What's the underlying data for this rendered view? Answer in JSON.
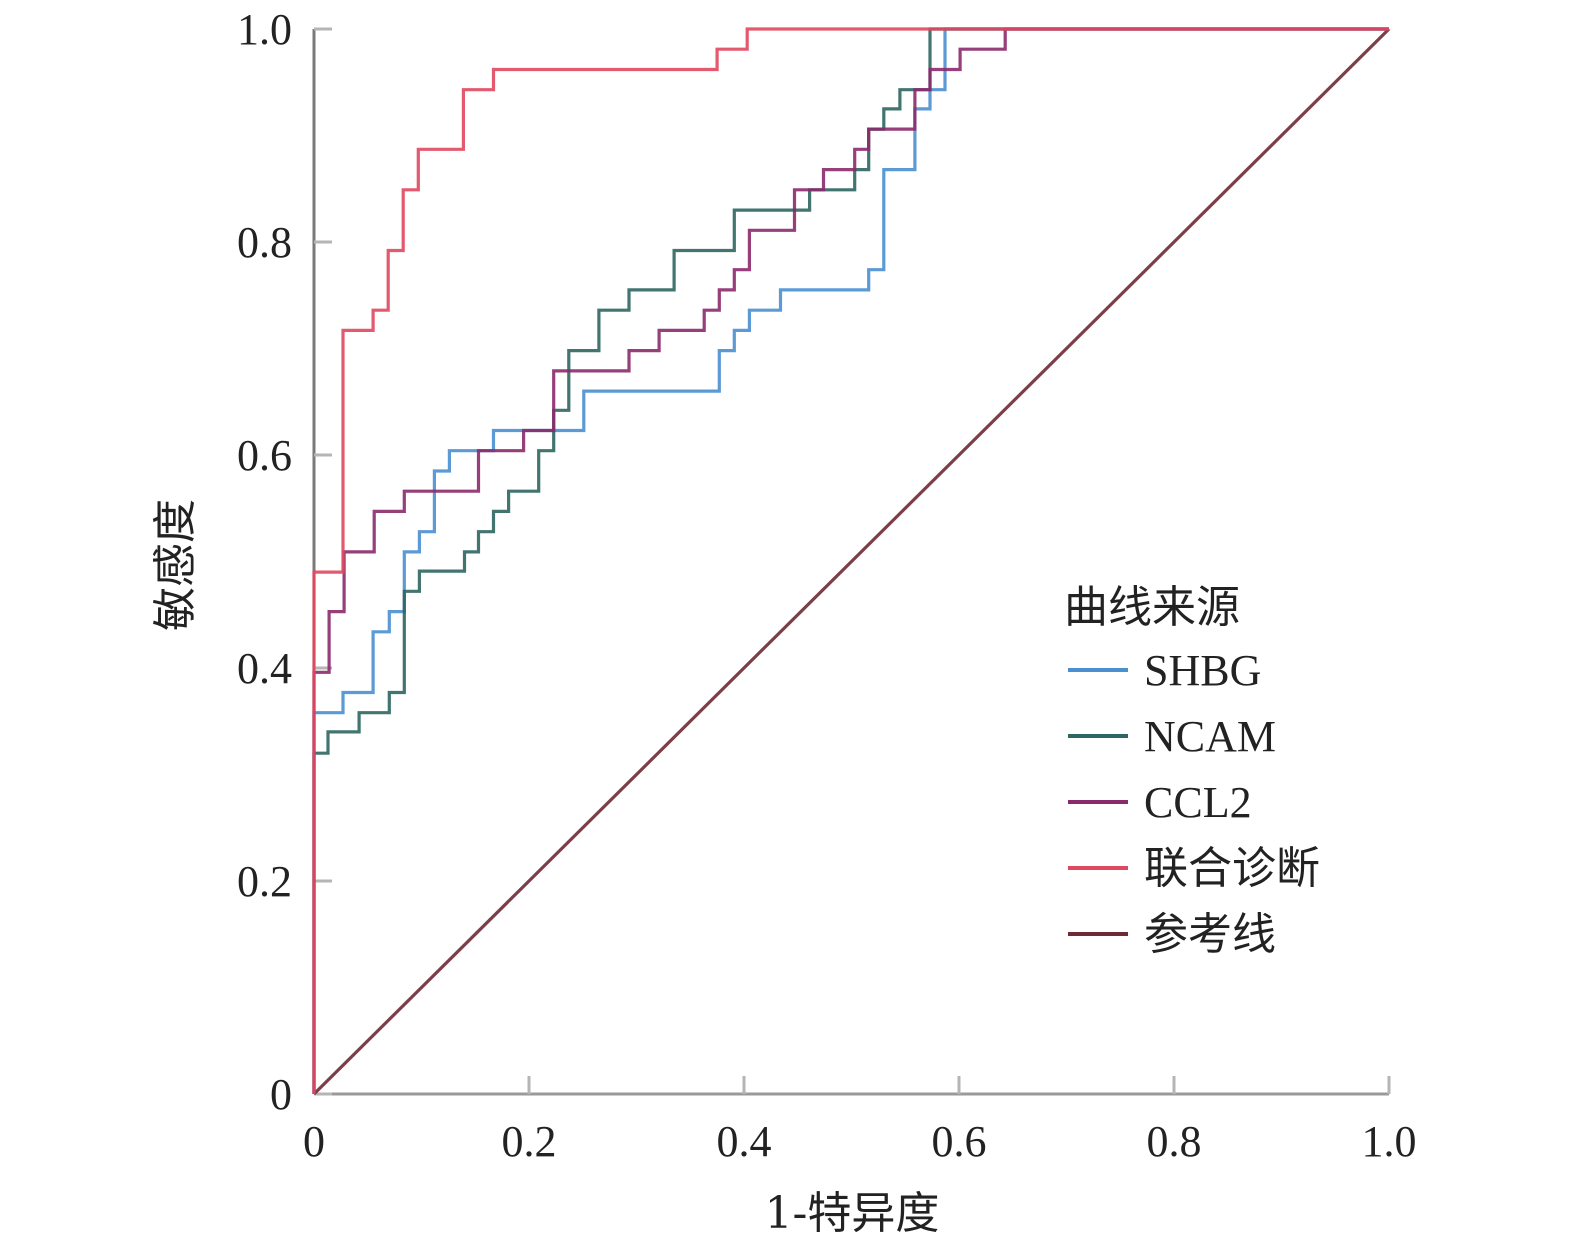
{
  "chart_data": {
    "type": "line",
    "title": "",
    "xlabel": "1-特异度",
    "ylabel": "敏感度",
    "xlim": [
      0,
      1
    ],
    "ylim": [
      0,
      1
    ],
    "xticks": [
      "0",
      "0.2",
      "0.4",
      "0.6",
      "0.8",
      "1.0"
    ],
    "yticks": [
      "0",
      "0.2",
      "0.4",
      "0.6",
      "0.8",
      "1.0"
    ],
    "grid": false,
    "legend": {
      "title": "曲线来源",
      "placement": "right"
    },
    "series": [
      {
        "name": "SHBG",
        "color": "#4a8fd0",
        "points": [
          [
            0,
            0
          ],
          [
            0,
            0.358
          ],
          [
            0.027,
            0.358
          ],
          [
            0.027,
            0.377
          ],
          [
            0.055,
            0.377
          ],
          [
            0.055,
            0.434
          ],
          [
            0.07,
            0.434
          ],
          [
            0.07,
            0.453
          ],
          [
            0.084,
            0.453
          ],
          [
            0.084,
            0.509
          ],
          [
            0.098,
            0.509
          ],
          [
            0.098,
            0.528
          ],
          [
            0.112,
            0.528
          ],
          [
            0.112,
            0.585
          ],
          [
            0.126,
            0.585
          ],
          [
            0.126,
            0.604
          ],
          [
            0.167,
            0.604
          ],
          [
            0.167,
            0.623
          ],
          [
            0.251,
            0.623
          ],
          [
            0.251,
            0.66
          ],
          [
            0.377,
            0.66
          ],
          [
            0.377,
            0.698
          ],
          [
            0.391,
            0.698
          ],
          [
            0.391,
            0.717
          ],
          [
            0.405,
            0.717
          ],
          [
            0.405,
            0.736
          ],
          [
            0.434,
            0.736
          ],
          [
            0.434,
            0.755
          ],
          [
            0.516,
            0.755
          ],
          [
            0.516,
            0.774
          ],
          [
            0.53,
            0.774
          ],
          [
            0.53,
            0.868
          ],
          [
            0.559,
            0.868
          ],
          [
            0.559,
            0.925
          ],
          [
            0.573,
            0.925
          ],
          [
            0.573,
            0.943
          ],
          [
            0.587,
            0.943
          ],
          [
            0.587,
            1
          ],
          [
            1,
            1
          ]
        ]
      },
      {
        "name": "NCAM",
        "color": "#2e6661",
        "points": [
          [
            0,
            0
          ],
          [
            0,
            0.32
          ],
          [
            0.013,
            0.32
          ],
          [
            0.013,
            0.34
          ],
          [
            0.042,
            0.34
          ],
          [
            0.042,
            0.358
          ],
          [
            0.07,
            0.358
          ],
          [
            0.07,
            0.377
          ],
          [
            0.084,
            0.377
          ],
          [
            0.084,
            0.472
          ],
          [
            0.098,
            0.472
          ],
          [
            0.098,
            0.491
          ],
          [
            0.14,
            0.491
          ],
          [
            0.14,
            0.509
          ],
          [
            0.153,
            0.509
          ],
          [
            0.153,
            0.528
          ],
          [
            0.167,
            0.528
          ],
          [
            0.167,
            0.547
          ],
          [
            0.181,
            0.547
          ],
          [
            0.181,
            0.566
          ],
          [
            0.209,
            0.566
          ],
          [
            0.209,
            0.604
          ],
          [
            0.223,
            0.604
          ],
          [
            0.223,
            0.642
          ],
          [
            0.237,
            0.642
          ],
          [
            0.237,
            0.698
          ],
          [
            0.265,
            0.698
          ],
          [
            0.265,
            0.736
          ],
          [
            0.293,
            0.736
          ],
          [
            0.293,
            0.755
          ],
          [
            0.335,
            0.755
          ],
          [
            0.335,
            0.792
          ],
          [
            0.391,
            0.792
          ],
          [
            0.391,
            0.83
          ],
          [
            0.461,
            0.83
          ],
          [
            0.461,
            0.849
          ],
          [
            0.503,
            0.849
          ],
          [
            0.503,
            0.868
          ],
          [
            0.516,
            0.868
          ],
          [
            0.516,
            0.906
          ],
          [
            0.53,
            0.906
          ],
          [
            0.53,
            0.925
          ],
          [
            0.545,
            0.925
          ],
          [
            0.545,
            0.943
          ],
          [
            0.573,
            0.943
          ],
          [
            0.573,
            1
          ],
          [
            1,
            1
          ]
        ]
      },
      {
        "name": "CCL2",
        "color": "#8b2a6b",
        "points": [
          [
            0,
            0
          ],
          [
            0,
            0.396
          ],
          [
            0.014,
            0.396
          ],
          [
            0.014,
            0.453
          ],
          [
            0.028,
            0.453
          ],
          [
            0.028,
            0.509
          ],
          [
            0.056,
            0.509
          ],
          [
            0.056,
            0.547
          ],
          [
            0.084,
            0.547
          ],
          [
            0.084,
            0.566
          ],
          [
            0.153,
            0.566
          ],
          [
            0.153,
            0.604
          ],
          [
            0.195,
            0.604
          ],
          [
            0.195,
            0.623
          ],
          [
            0.223,
            0.623
          ],
          [
            0.223,
            0.679
          ],
          [
            0.293,
            0.679
          ],
          [
            0.293,
            0.698
          ],
          [
            0.321,
            0.698
          ],
          [
            0.321,
            0.717
          ],
          [
            0.363,
            0.717
          ],
          [
            0.363,
            0.736
          ],
          [
            0.377,
            0.736
          ],
          [
            0.377,
            0.755
          ],
          [
            0.391,
            0.755
          ],
          [
            0.391,
            0.774
          ],
          [
            0.405,
            0.774
          ],
          [
            0.405,
            0.811
          ],
          [
            0.447,
            0.811
          ],
          [
            0.447,
            0.849
          ],
          [
            0.474,
            0.849
          ],
          [
            0.474,
            0.868
          ],
          [
            0.503,
            0.868
          ],
          [
            0.503,
            0.887
          ],
          [
            0.516,
            0.887
          ],
          [
            0.516,
            0.906
          ],
          [
            0.559,
            0.906
          ],
          [
            0.559,
            0.943
          ],
          [
            0.573,
            0.943
          ],
          [
            0.573,
            0.962
          ],
          [
            0.601,
            0.962
          ],
          [
            0.601,
            0.981
          ],
          [
            0.643,
            0.981
          ],
          [
            0.643,
            1
          ],
          [
            1,
            1
          ]
        ]
      },
      {
        "name": "联合诊断",
        "color": "#e0485f",
        "points": [
          [
            0,
            0
          ],
          [
            0,
            0.49
          ],
          [
            0.027,
            0.49
          ],
          [
            0.027,
            0.717
          ],
          [
            0.055,
            0.717
          ],
          [
            0.055,
            0.736
          ],
          [
            0.069,
            0.736
          ],
          [
            0.069,
            0.792
          ],
          [
            0.083,
            0.792
          ],
          [
            0.083,
            0.849
          ],
          [
            0.097,
            0.849
          ],
          [
            0.097,
            0.887
          ],
          [
            0.139,
            0.887
          ],
          [
            0.139,
            0.943
          ],
          [
            0.167,
            0.943
          ],
          [
            0.167,
            0.962
          ],
          [
            0.375,
            0.962
          ],
          [
            0.375,
            0.981
          ],
          [
            0.403,
            0.981
          ],
          [
            0.403,
            1
          ],
          [
            1,
            1
          ]
        ]
      },
      {
        "name": "参考线",
        "color": "#6e2a35",
        "points": [
          [
            0,
            0
          ],
          [
            1,
            1
          ]
        ]
      }
    ]
  }
}
